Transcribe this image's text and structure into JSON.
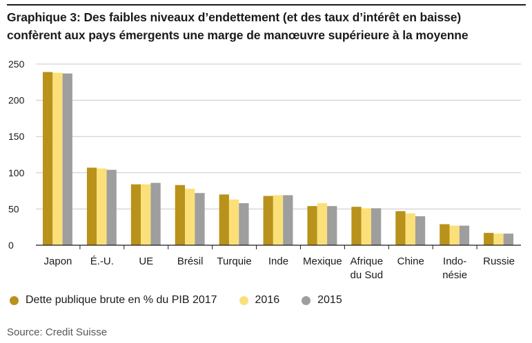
{
  "title_line1": "Graphique 3: Des faibles niveaux d’endettement (et des taux d’intérêt en baisse)",
  "title_line2": "confèrent aux pays émergents une marge de manœuvre supérieure à la moyenne",
  "source": "Source: Credit Suisse",
  "chart_data": {
    "type": "bar",
    "categories": [
      "Japon",
      "É.-U.",
      "UE",
      "Brésil",
      "Turquie",
      "Inde",
      "Mexique",
      "Afrique du Sud",
      "Chine",
      "Indo-nésie",
      "Russie"
    ],
    "category_lines": [
      [
        "Japon"
      ],
      [
        "É.-U."
      ],
      [
        "UE"
      ],
      [
        "Brésil"
      ],
      [
        "Turquie"
      ],
      [
        "Inde"
      ],
      [
        "Mexique"
      ],
      [
        "Afrique",
        "du Sud"
      ],
      [
        "Chine"
      ],
      [
        "Indo-",
        "nésie"
      ],
      [
        "Russie"
      ]
    ],
    "series": [
      {
        "name": "Dette publique brute en % du PIB 2017",
        "color": "#b8921a",
        "values": [
          239,
          107,
          84,
          83,
          70,
          68,
          54,
          53,
          47,
          29,
          17
        ]
      },
      {
        "name": "2016",
        "color": "#fbe07a",
        "values": [
          238,
          106,
          84,
          78,
          63,
          69,
          58,
          51,
          44,
          27,
          16
        ]
      },
      {
        "name": "2015",
        "color": "#9e9e9e",
        "values": [
          237,
          104,
          86,
          72,
          58,
          69,
          54,
          51,
          40,
          27,
          16
        ]
      }
    ],
    "yticks": [
      0,
      50,
      100,
      150,
      200,
      250
    ],
    "ylim": [
      0,
      250
    ],
    "grid": true,
    "legend_position": "bottom-left"
  }
}
